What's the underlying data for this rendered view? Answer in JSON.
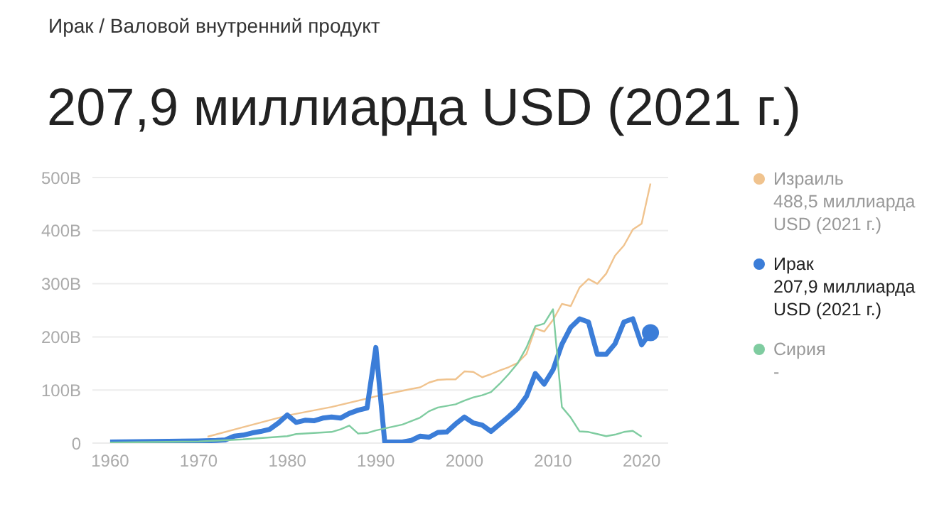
{
  "chart_data": {
    "type": "line",
    "subtitle": "Ирак / Валовой внутренний продукт",
    "title": "207,9 миллиарда USD (2021 г.)",
    "xlim": [
      1958,
      2023
    ],
    "xticks": [
      1960,
      1970,
      1980,
      1990,
      2000,
      2010,
      2020
    ],
    "ylim": [
      0,
      500
    ],
    "yticks": [
      0,
      {
        "value": 100,
        "label": "100B"
      },
      {
        "value": 200,
        "label": "200B"
      },
      {
        "value": 300,
        "label": "300B"
      },
      {
        "value": 400,
        "label": "400B"
      },
      {
        "value": 500,
        "label": "500B"
      }
    ],
    "grid": "y",
    "legend": "right",
    "marker": "none",
    "series": [
      {
        "name": "Израиль",
        "color": "#f0c38e",
        "x": [
          1971,
          1975,
          1980,
          1985,
          1990,
          1994,
          1995,
          1996,
          1997,
          1998,
          1999,
          2000,
          2001,
          2002,
          2003,
          2004,
          2005,
          2006,
          2007,
          2008,
          2009,
          2010,
          2011,
          2012,
          2013,
          2014,
          2015,
          2016,
          2017,
          2018,
          2019,
          2020,
          2021
        ],
        "values": [
          12,
          30,
          52,
          68,
          88,
          102,
          105,
          114,
          119,
          120,
          120,
          135,
          134,
          124,
          130,
          137,
          143,
          151,
          168,
          216,
          210,
          232,
          262,
          258,
          293,
          309,
          300,
          319,
          353,
          372,
          402,
          413,
          488.5
        ]
      },
      {
        "name": "Ирак",
        "color": "#3b7dd8",
        "x": [
          1960,
          1965,
          1970,
          1972,
          1973,
          1974,
          1975,
          1976,
          1977,
          1978,
          1979,
          1980,
          1981,
          1982,
          1983,
          1984,
          1985,
          1986,
          1987,
          1988,
          1989,
          1990,
          1991,
          1992,
          1993,
          1994,
          1995,
          1996,
          1997,
          1998,
          1999,
          2000,
          2001,
          2002,
          2003,
          2004,
          2005,
          2006,
          2007,
          2008,
          2009,
          2010,
          2011,
          2012,
          2013,
          2014,
          2015,
          2016,
          2017,
          2018,
          2019,
          2020,
          2021
        ],
        "values": [
          2,
          3,
          4,
          5,
          6,
          13,
          15,
          19,
          22,
          26,
          38,
          53,
          39,
          43,
          42,
          47,
          49,
          47,
          56,
          62,
          66,
          180,
          2,
          2,
          2,
          5,
          13,
          11,
          20,
          21,
          36,
          49,
          38,
          34,
          22,
          36,
          50,
          65,
          88,
          131,
          111,
          138,
          186,
          218,
          234,
          228,
          167,
          167,
          187,
          228,
          234,
          185,
          207.9
        ]
      },
      {
        "name": "Сирия",
        "color": "#7fcca0",
        "x": [
          1960,
          1970,
          1975,
          1980,
          1981,
          1985,
          1986,
          1987,
          1988,
          1989,
          1990,
          1993,
          1995,
          1996,
          1997,
          1998,
          1999,
          2000,
          2001,
          2002,
          2003,
          2004,
          2005,
          2006,
          2007,
          2008,
          2009,
          2010,
          2011,
          2012,
          2013,
          2014,
          2015,
          2016,
          2017,
          2018,
          2019,
          2020
        ],
        "values": [
          1,
          3,
          7,
          13,
          17,
          21,
          26,
          33,
          18,
          19,
          24,
          35,
          48,
          60,
          67,
          70,
          73,
          80,
          86,
          90,
          96,
          112,
          130,
          150,
          180,
          220,
          225,
          252,
          68,
          48,
          22,
          21,
          17,
          13,
          16,
          21,
          23,
          12
        ]
      }
    ],
    "annotations": [
      "488,5 миллиарда USD (2021 г.)",
      "207,9 миллиарда USD (2021 г.)",
      "-"
    ]
  }
}
